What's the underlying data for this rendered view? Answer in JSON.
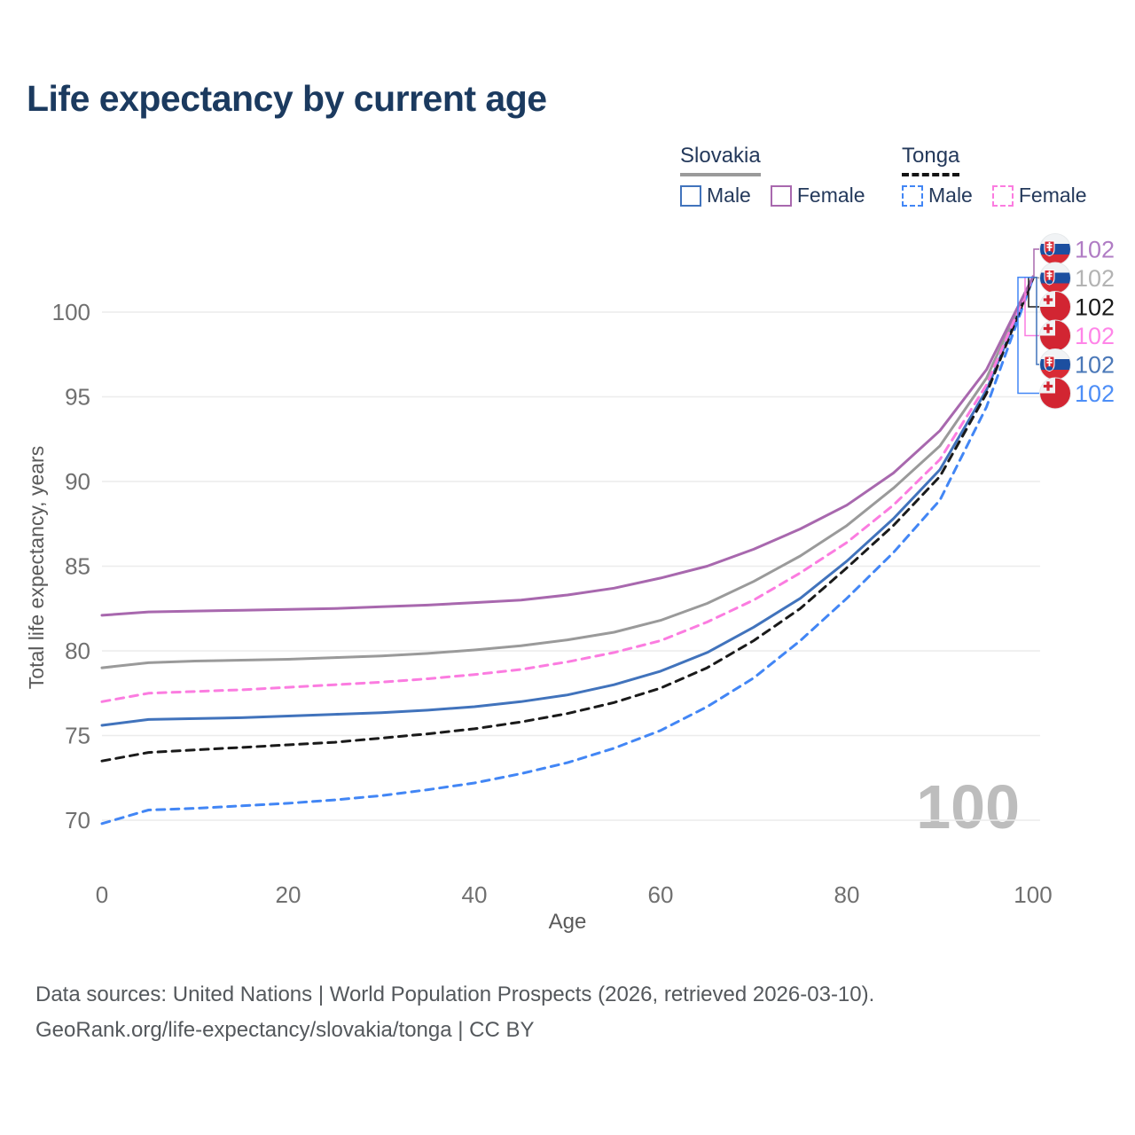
{
  "title": "Life expectancy by current age",
  "watermark": "100",
  "legend": {
    "groups": [
      {
        "country": "Slovakia",
        "underline_style": "solid",
        "underline_color": "#9a9a9a",
        "items": [
          {
            "label": "Male",
            "series": "slovakia-male"
          },
          {
            "label": "Female",
            "series": "slovakia-female"
          }
        ]
      },
      {
        "country": "Tonga",
        "underline_style": "dashed",
        "underline_color": "#141414",
        "items": [
          {
            "label": "Male",
            "series": "tonga-male"
          },
          {
            "label": "Female",
            "series": "tonga-female"
          }
        ]
      }
    ]
  },
  "chart_data": {
    "type": "line",
    "title": "Life expectancy by current age",
    "xlabel": "Age",
    "ylabel": "Total life expectancy, years",
    "xlim": [
      0,
      100
    ],
    "ylim": [
      68,
      104
    ],
    "x_ticks": [
      0,
      20,
      40,
      60,
      80,
      100
    ],
    "y_ticks": [
      70,
      75,
      80,
      85,
      90,
      95,
      100
    ],
    "grid": "horizontal",
    "x": [
      0,
      5,
      10,
      15,
      20,
      25,
      30,
      35,
      40,
      45,
      50,
      55,
      60,
      65,
      70,
      75,
      80,
      85,
      90,
      95,
      100
    ],
    "series": [
      {
        "id": "slovakia-both",
        "country": "Slovakia",
        "sex": "Both sexes",
        "color": "#9a9a9a",
        "dash": false,
        "values": [
          79.0,
          79.3,
          79.4,
          79.45,
          79.5,
          79.6,
          79.7,
          79.85,
          80.05,
          80.3,
          80.65,
          81.1,
          81.8,
          82.8,
          84.1,
          85.6,
          87.4,
          89.6,
          92.1,
          96.1,
          102.1
        ]
      },
      {
        "id": "slovakia-male",
        "country": "Slovakia",
        "sex": "Male",
        "color": "#4173bc",
        "dash": false,
        "values": [
          75.6,
          75.95,
          76.0,
          76.05,
          76.15,
          76.25,
          76.35,
          76.5,
          76.7,
          77.0,
          77.4,
          78.0,
          78.8,
          79.9,
          81.4,
          83.1,
          85.3,
          87.8,
          90.7,
          95.4,
          102.0
        ]
      },
      {
        "id": "tonga-male",
        "country": "Tonga",
        "sex": "Male",
        "color": "#4286f5",
        "dash": true,
        "values": [
          69.8,
          70.6,
          70.7,
          70.85,
          71.0,
          71.2,
          71.45,
          71.8,
          72.2,
          72.75,
          73.4,
          74.25,
          75.3,
          76.7,
          78.4,
          80.6,
          83.1,
          85.8,
          88.9,
          94.4,
          102.0
        ]
      },
      {
        "id": "tonga-both",
        "country": "Tonga",
        "sex": "Both sexes",
        "color": "#1a1a1a",
        "dash": true,
        "values": [
          73.5,
          74.0,
          74.15,
          74.3,
          74.45,
          74.6,
          74.85,
          75.1,
          75.4,
          75.8,
          76.3,
          76.95,
          77.8,
          79.0,
          80.6,
          82.5,
          84.9,
          87.4,
          90.3,
          95.2,
          102.0
        ]
      },
      {
        "id": "tonga-female",
        "country": "Tonga",
        "sex": "Female",
        "color": "#fb7ce0",
        "dash": true,
        "values": [
          77.0,
          77.5,
          77.6,
          77.7,
          77.85,
          78.0,
          78.15,
          78.35,
          78.6,
          78.9,
          79.35,
          79.9,
          80.6,
          81.7,
          83.0,
          84.6,
          86.4,
          88.6,
          91.3,
          95.7,
          102.1
        ]
      },
      {
        "id": "slovakia-female",
        "country": "Slovakia",
        "sex": "Female",
        "color": "#a868ae",
        "dash": false,
        "values": [
          82.1,
          82.3,
          82.35,
          82.4,
          82.45,
          82.5,
          82.6,
          82.7,
          82.85,
          83.0,
          83.3,
          83.7,
          84.3,
          85.0,
          86.0,
          87.2,
          88.6,
          90.5,
          93.0,
          96.6,
          102.1
        ]
      }
    ],
    "endpoint_labels": [
      {
        "series": "slovakia-female",
        "flag": "slovakia",
        "value": "102",
        "text_color": "#b07cc4"
      },
      {
        "series": "slovakia-both",
        "flag": "slovakia",
        "value": "102",
        "text_color": "#b3b3b3"
      },
      {
        "series": "tonga-both",
        "flag": "tonga",
        "value": "102",
        "text_color": "#1a1a1a"
      },
      {
        "series": "tonga-female",
        "flag": "tonga",
        "value": "102",
        "text_color": "#ff85e8"
      },
      {
        "series": "slovakia-male",
        "flag": "slovakia",
        "value": "102",
        "text_color": "#4a78b8"
      },
      {
        "series": "tonga-male",
        "flag": "tonga",
        "value": "102",
        "text_color": "#4d8ef7"
      }
    ]
  },
  "footer": {
    "line1": "Data sources: United Nations | World Population Prospects (2026, retrieved 2026-03-10).",
    "line2": "GeoRank.org/life-expectancy/slovakia/tonga | CC BY"
  }
}
